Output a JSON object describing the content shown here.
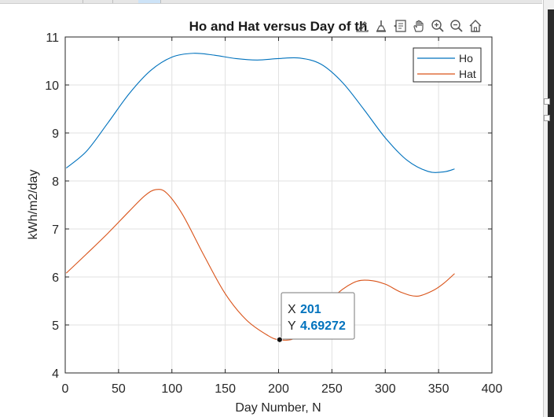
{
  "figure": {
    "toolbar": [
      {
        "name": "export-icon",
        "label": ""
      },
      {
        "name": "brush-icon",
        "label": ""
      },
      {
        "name": "datatip-icon",
        "label": ""
      },
      {
        "name": "pan-hand-icon",
        "label": ""
      },
      {
        "name": "zoom-in-icon",
        "label": ""
      },
      {
        "name": "zoom-out-icon",
        "label": ""
      },
      {
        "name": "home-icon",
        "label": ""
      }
    ]
  },
  "chart_data": {
    "type": "line",
    "title": "Ho and Hat versus Day of th",
    "xlabel": "Day Number, N",
    "ylabel": "kWh/m2/day",
    "xlim": [
      0,
      400
    ],
    "ylim": [
      4,
      11
    ],
    "xticks": [
      0,
      50,
      100,
      150,
      200,
      250,
      300,
      350,
      400
    ],
    "yticks": [
      4,
      5,
      6,
      7,
      8,
      9,
      10,
      11
    ],
    "grid": true,
    "legend_position": "top-right",
    "series": [
      {
        "name": "Ho",
        "color": "#0072BD",
        "x": [
          1,
          20,
          40,
          60,
          80,
          100,
          120,
          140,
          160,
          180,
          200,
          220,
          240,
          260,
          280,
          300,
          320,
          340,
          355,
          365
        ],
        "y": [
          8.27,
          8.62,
          9.21,
          9.82,
          10.3,
          10.58,
          10.66,
          10.62,
          10.55,
          10.52,
          10.55,
          10.56,
          10.43,
          10.05,
          9.49,
          8.9,
          8.44,
          8.2,
          8.19,
          8.25
        ]
      },
      {
        "name": "Hat",
        "color": "#D95319",
        "x": [
          1,
          20,
          40,
          60,
          75,
          85,
          95,
          110,
          130,
          150,
          170,
          190,
          201,
          215,
          230,
          250,
          270,
          285,
          300,
          315,
          330,
          345,
          355,
          365
        ],
        "y": [
          6.08,
          6.48,
          6.91,
          7.37,
          7.7,
          7.82,
          7.75,
          7.3,
          6.45,
          5.65,
          5.1,
          4.78,
          4.69,
          4.72,
          4.98,
          5.55,
          5.88,
          5.93,
          5.85,
          5.68,
          5.6,
          5.72,
          5.87,
          6.07
        ]
      }
    ],
    "datatip": {
      "x_label": "X",
      "y_label": "Y",
      "x_value": "201",
      "y_value": "4.69272",
      "x": 201,
      "y": 4.69272,
      "value_color": "#0072BD"
    }
  }
}
